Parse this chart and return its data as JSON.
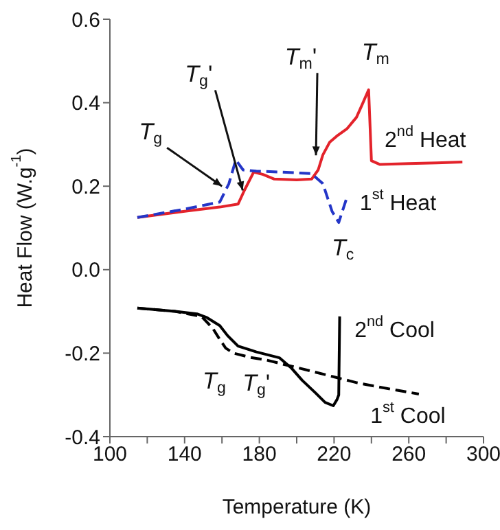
{
  "chart_data": {
    "type": "line",
    "xlabel": "Temperature (K)",
    "ylabel": "Heat Flow (W.g$^{-1}$)",
    "xlim": [
      100,
      300
    ],
    "ylim": [
      -0.4,
      0.6
    ],
    "xticks": [
      100,
      {
        "value": 120,
        "label": null
      },
      140,
      {
        "value": 160,
        "label": null
      },
      180,
      {
        "value": 200,
        "label": null
      },
      220,
      {
        "value": 240,
        "label": null
      },
      260,
      {
        "value": 280,
        "label": null
      },
      300
    ],
    "yticks": [
      -0.4,
      -0.2,
      {
        "value": 0,
        "label": "0.0"
      },
      0.2,
      0.4,
      0.6
    ],
    "marker": "none",
    "series": [
      {
        "name": "2$^{nd}$ Heat",
        "color": "#e3232b",
        "line_style": "solid",
        "x": [
          114.7,
          140,
          158.8,
          168.6,
          172,
          177,
          182,
          188,
          200,
          208,
          211.5,
          214,
          217.6,
          222,
          227,
          232,
          235,
          238.5,
          240,
          244.6,
          260,
          275,
          288.7
        ],
        "values": [
          0.125,
          0.14,
          0.15,
          0.157,
          0.19,
          0.234,
          0.228,
          0.217,
          0.215,
          0.217,
          0.239,
          0.275,
          0.305,
          0.322,
          0.338,
          0.365,
          0.395,
          0.431,
          0.261,
          0.252,
          0.254,
          0.256,
          0.258
        ]
      },
      {
        "name": "1$^{st}$ Heat",
        "color": "#2436c8",
        "line_style": "dashed",
        "x": [
          114.7,
          140,
          158.8,
          163.7,
          167.4,
          171.3,
          178.4,
          190,
          200,
          208,
          214,
          218.9,
          222.5,
          227
        ],
        "values": [
          0.125,
          0.145,
          0.162,
          0.206,
          0.263,
          0.239,
          0.236,
          0.234,
          0.232,
          0.23,
          0.206,
          0.14,
          0.113,
          0.175
        ]
      },
      {
        "name": "2$^{nd}$ Cool",
        "color": "#000000",
        "line_style": "solid",
        "x": [
          114.7,
          135,
          146.6,
          152,
          158.8,
          163,
          168.6,
          178.4,
          190.7,
          197,
          202.9,
          210,
          215.2,
          219.6,
          221.6,
          222.5,
          223
        ],
        "values": [
          -0.092,
          -0.1,
          -0.106,
          -0.115,
          -0.134,
          -0.158,
          -0.183,
          -0.197,
          -0.211,
          -0.235,
          -0.265,
          -0.295,
          -0.318,
          -0.326,
          -0.311,
          -0.3,
          -0.112
        ]
      },
      {
        "name": "1$^{st}$ Cool",
        "color": "#000000",
        "line_style": "dashed",
        "x": [
          114.7,
          135,
          149,
          155,
          158.8,
          162,
          166.2,
          175,
          183.3,
          195,
          207.8,
          220,
          232.4,
          250,
          265.4
        ],
        "values": [
          -0.092,
          -0.1,
          -0.112,
          -0.14,
          -0.167,
          -0.188,
          -0.2,
          -0.21,
          -0.216,
          -0.229,
          -0.243,
          -0.257,
          -0.271,
          -0.286,
          -0.298
        ]
      }
    ],
    "annotations": [
      {
        "text": "T$_{g}$",
        "x": 160,
        "y": 0.2
      },
      {
        "text": "T$_{g}$'",
        "x": 171.1,
        "y": 0.19
      },
      {
        "text": "T$_{m}$'",
        "x": 210.3,
        "y": 0.274
      },
      {
        "text": "T$_{m}$",
        "x": 238.5,
        "y": 0.431
      },
      {
        "text": "T$_{c}$",
        "x": 222.5,
        "y": 0.113
      },
      {
        "text": "T$_{g}$",
        "x": 158.8,
        "y": -0.167
      },
      {
        "text": "T$_{g}$'",
        "x": 178.4,
        "y": -0.197
      }
    ]
  }
}
